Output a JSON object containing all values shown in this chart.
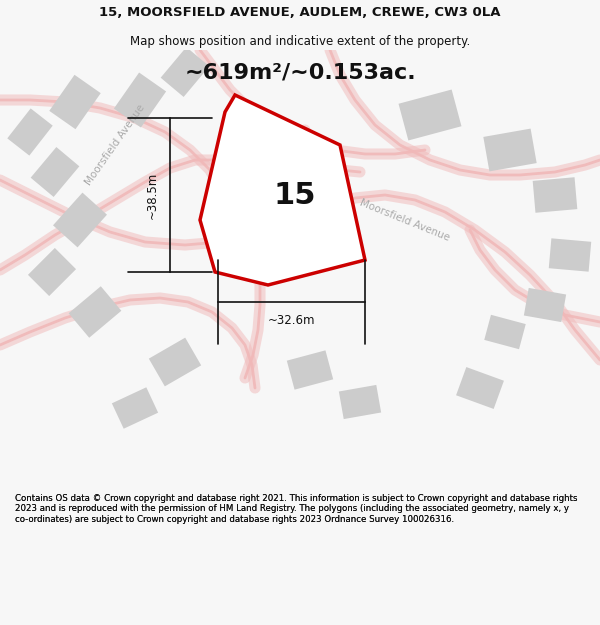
{
  "title_line1": "15, MOORSFIELD AVENUE, AUDLEM, CREWE, CW3 0LA",
  "title_line2": "Map shows position and indicative extent of the property.",
  "area_label": "~619m²/~0.153ac.",
  "width_label": "~32.6m",
  "height_label": "~38.5m",
  "plot_number": "15",
  "footer": "Contains OS data © Crown copyright and database right 2021. This information is subject to Crown copyright and database rights 2023 and is reproduced with the permission of HM Land Registry. The polygons (including the associated geometry, namely x, y co-ordinates) are subject to Crown copyright and database rights 2023 Ordnance Survey 100026316.",
  "bg_color": "#f7f7f7",
  "map_bg": "#ffffff",
  "plot_fill": "#ffffff",
  "plot_edge": "#cc0000",
  "road_color": "#f0b8b8",
  "building_color": "#cccccc",
  "street_label_color": "#aaaaaa",
  "dim_color": "#111111",
  "title_fontsize": 9.5,
  "subtitle_fontsize": 8.5,
  "area_fontsize": 16,
  "plot_num_fontsize": 22,
  "footer_fontsize": 6.2
}
